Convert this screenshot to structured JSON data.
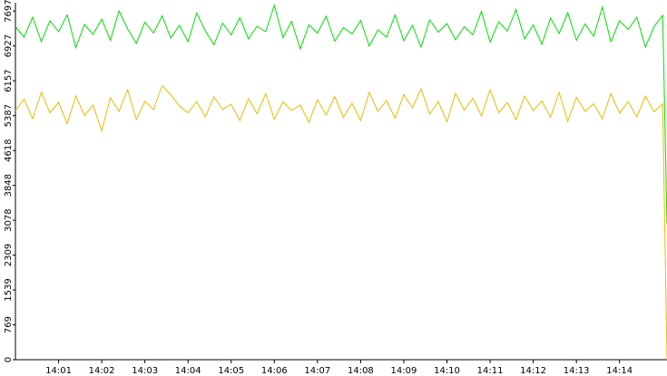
{
  "chart_data": {
    "type": "line",
    "x": [
      840,
      840.2,
      840.4,
      840.6,
      840.8,
      841,
      841.2,
      841.4,
      841.6,
      841.8,
      842,
      842.2,
      842.4,
      842.6,
      842.8,
      843,
      843.2,
      843.4,
      843.6,
      843.8,
      844,
      844.2,
      844.4,
      844.6,
      844.8,
      845,
      845.2,
      845.4,
      845.6,
      845.8,
      846,
      846.2,
      846.4,
      846.6,
      846.8,
      847,
      847.2,
      847.4,
      847.6,
      847.8,
      848,
      848.2,
      848.4,
      848.6,
      848.8,
      849,
      849.2,
      849.4,
      849.6,
      849.8,
      850,
      850.2,
      850.4,
      850.6,
      850.8,
      851,
      851.2,
      851.4,
      851.6,
      851.8,
      852,
      852.2,
      852.4,
      852.6,
      852.8,
      853,
      853.2,
      853.4,
      853.6,
      853.8,
      854,
      854.2,
      854.4,
      854.6,
      854.8,
      855,
      855.1
    ],
    "series": [
      {
        "color": "#00e000",
        "values": [
          7350,
          7120,
          7560,
          7020,
          7480,
          7240,
          7610,
          6890,
          7400,
          7180,
          7520,
          7050,
          7700,
          7300,
          6980,
          7450,
          7210,
          7590,
          7100,
          7380,
          7020,
          7650,
          7260,
          6950,
          7430,
          7170,
          7550,
          7080,
          7360,
          7240,
          7820,
          7110,
          7470,
          6860,
          7390,
          7210,
          7580,
          7030,
          7330,
          7190,
          7490,
          6920,
          7280,
          7120,
          7610,
          7040,
          7380,
          6900,
          7500,
          7230,
          7420,
          7060,
          7350,
          7170,
          7690,
          7010,
          7460,
          7250,
          7730,
          7080,
          7390,
          6960,
          7540,
          7200,
          7660,
          7050,
          7410,
          7140,
          7780,
          7020,
          7480,
          7290,
          7560,
          6900,
          7350,
          7600,
          3000
        ]
      },
      {
        "color": "#f0b800",
        "values": [
          5500,
          5750,
          5320,
          5900,
          5450,
          5680,
          5210,
          5820,
          5390,
          5620,
          5050,
          5780,
          5480,
          5960,
          5300,
          5700,
          5520,
          6050,
          5850,
          5600,
          5450,
          5700,
          5360,
          5800,
          5520,
          5640,
          5280,
          5760,
          5430,
          5870,
          5310,
          5690,
          5500,
          5620,
          5240,
          5740,
          5400,
          5810,
          5350,
          5660,
          5280,
          5900,
          5480,
          5720,
          5330,
          5850,
          5560,
          5980,
          5420,
          5700,
          5250,
          5880,
          5510,
          5770,
          5380,
          5960,
          5450,
          5680,
          5300,
          5820,
          5500,
          5710,
          5350,
          5900,
          5260,
          5790,
          5480,
          5650,
          5320,
          5870,
          5440,
          5700,
          5360,
          5820,
          5470,
          5650,
          0
        ]
      }
    ],
    "xlim": [
      840,
      855.1
    ],
    "xticks": [
      {
        "value": 841,
        "label": "14:01"
      },
      {
        "value": 842,
        "label": "14:02"
      },
      {
        "value": 843,
        "label": "14:03"
      },
      {
        "value": 844,
        "label": "14:04"
      },
      {
        "value": 845,
        "label": "14:05"
      },
      {
        "value": 846,
        "label": "14:06"
      },
      {
        "value": 847,
        "label": "14:07"
      },
      {
        "value": 848,
        "label": "14:08"
      },
      {
        "value": 849,
        "label": "14:09"
      },
      {
        "value": 850,
        "label": "14:10"
      },
      {
        "value": 851,
        "label": "14:11"
      },
      {
        "value": 852,
        "label": "14:12"
      },
      {
        "value": 853,
        "label": "14:13"
      },
      {
        "value": 854,
        "label": "14:14"
      }
    ],
    "ylim": [
      0,
      7880
    ],
    "yticks": [
      0,
      769,
      1539,
      2309,
      3078,
      3848,
      4618,
      5387,
      6157,
      6927,
      7697
    ]
  }
}
